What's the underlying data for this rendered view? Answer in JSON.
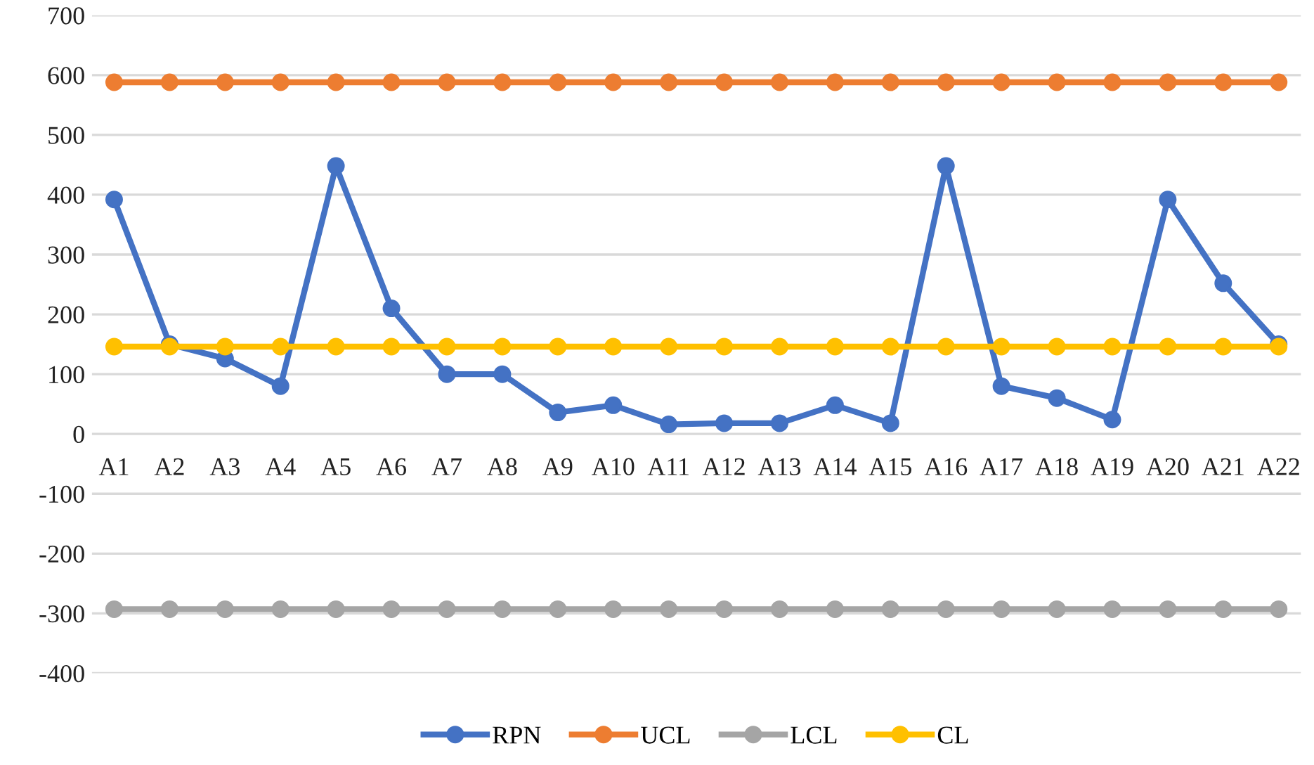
{
  "chart_data": {
    "type": "line",
    "categories": [
      "A1",
      "A2",
      "A3",
      "A4",
      "A5",
      "A6",
      "A7",
      "A8",
      "A9",
      "A10",
      "A11",
      "A12",
      "A13",
      "A14",
      "A15",
      "A16",
      "A17",
      "A18",
      "A19",
      "A20",
      "A21",
      "A22"
    ],
    "series": [
      {
        "name": "RPN",
        "color": "#4472c4",
        "values": [
          392,
          150,
          126,
          80,
          448,
          210,
          100,
          100,
          36,
          48,
          16,
          18,
          18,
          48,
          18,
          448,
          80,
          60,
          24,
          392,
          252,
          150
        ]
      },
      {
        "name": "UCL",
        "color": "#ed7d31",
        "values": [
          588,
          588,
          588,
          588,
          588,
          588,
          588,
          588,
          588,
          588,
          588,
          588,
          588,
          588,
          588,
          588,
          588,
          588,
          588,
          588,
          588,
          588
        ]
      },
      {
        "name": "LCL",
        "color": "#a5a5a5",
        "values": [
          -293,
          -293,
          -293,
          -293,
          -293,
          -293,
          -293,
          -293,
          -293,
          -293,
          -293,
          -293,
          -293,
          -293,
          -293,
          -293,
          -293,
          -293,
          -293,
          -293,
          -293,
          -293
        ]
      },
      {
        "name": "CL",
        "color": "#ffc000",
        "values": [
          146,
          146,
          146,
          146,
          146,
          146,
          146,
          146,
          146,
          146,
          146,
          146,
          146,
          146,
          146,
          146,
          146,
          146,
          146,
          146,
          146,
          146
        ]
      }
    ],
    "ylim": [
      -400,
      700
    ],
    "yticks": [
      -400,
      -300,
      -200,
      -100,
      0,
      100,
      200,
      300,
      400,
      500,
      600,
      700
    ],
    "grid": "y",
    "legend": "bottom",
    "marker": "circle",
    "line_style": "solid"
  }
}
